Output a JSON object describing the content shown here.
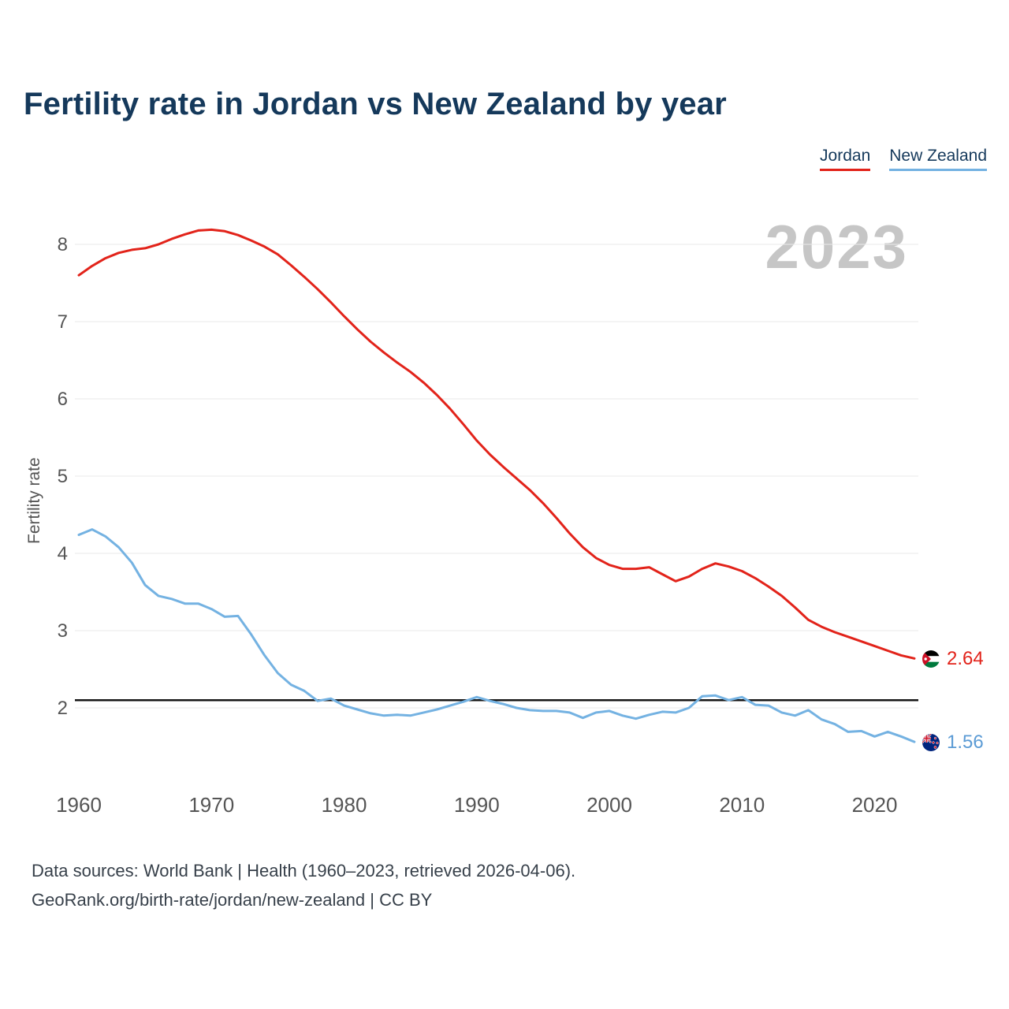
{
  "title": "Fertility rate in Jordan vs New Zealand by year",
  "legend": {
    "jordan": "Jordan",
    "new_zealand": "New Zealand"
  },
  "chart_data": {
    "type": "line",
    "title": "Fertility rate in Jordan vs New Zealand by year",
    "watermark": "2023",
    "xlabel": "",
    "ylabel": "Fertility rate",
    "grid": true,
    "legend_position": "top-right",
    "xlim": [
      1960,
      2023
    ],
    "ylim": [
      1.4,
      8.45
    ],
    "xticks": [
      1960,
      1970,
      1980,
      1990,
      2000,
      2010,
      2020
    ],
    "yticks": [
      2,
      3,
      4,
      5,
      6,
      7,
      8
    ],
    "replacement_line": 2.1,
    "x": [
      1960,
      1961,
      1962,
      1963,
      1964,
      1965,
      1966,
      1967,
      1968,
      1969,
      1970,
      1971,
      1972,
      1973,
      1974,
      1975,
      1976,
      1977,
      1978,
      1979,
      1980,
      1981,
      1982,
      1983,
      1984,
      1985,
      1986,
      1987,
      1988,
      1989,
      1990,
      1991,
      1992,
      1993,
      1994,
      1995,
      1996,
      1997,
      1998,
      1999,
      2000,
      2001,
      2002,
      2003,
      2004,
      2005,
      2006,
      2007,
      2008,
      2009,
      2010,
      2011,
      2012,
      2013,
      2014,
      2015,
      2016,
      2017,
      2018,
      2019,
      2020,
      2021,
      2022,
      2023
    ],
    "series": [
      {
        "name": "Jordan",
        "color": "#e2231a",
        "values": [
          7.6,
          7.72,
          7.82,
          7.89,
          7.93,
          7.95,
          8.0,
          8.07,
          8.13,
          8.18,
          8.19,
          8.17,
          8.12,
          8.05,
          7.97,
          7.87,
          7.73,
          7.58,
          7.42,
          7.25,
          7.07,
          6.9,
          6.74,
          6.6,
          6.47,
          6.35,
          6.21,
          6.05,
          5.87,
          5.67,
          5.46,
          5.28,
          5.12,
          4.97,
          4.82,
          4.65,
          4.46,
          4.26,
          4.08,
          3.94,
          3.85,
          3.8,
          3.8,
          3.82,
          3.73,
          3.64,
          3.7,
          3.8,
          3.87,
          3.83,
          3.77,
          3.68,
          3.57,
          3.45,
          3.3,
          3.14,
          3.05,
          2.98,
          2.92,
          2.86,
          2.8,
          2.74,
          2.68,
          2.64
        ]
      },
      {
        "name": "New Zealand",
        "color": "#74b2e2",
        "values": [
          4.24,
          4.31,
          4.22,
          4.08,
          3.88,
          3.59,
          3.45,
          3.41,
          3.35,
          3.35,
          3.28,
          3.18,
          3.19,
          2.95,
          2.68,
          2.45,
          2.3,
          2.22,
          2.09,
          2.12,
          2.03,
          1.98,
          1.93,
          1.9,
          1.91,
          1.9,
          1.94,
          1.98,
          2.03,
          2.08,
          2.14,
          2.09,
          2.05,
          2.0,
          1.97,
          1.96,
          1.96,
          1.94,
          1.87,
          1.94,
          1.96,
          1.9,
          1.86,
          1.91,
          1.95,
          1.94,
          2.0,
          2.15,
          2.16,
          2.1,
          2.14,
          2.04,
          2.03,
          1.94,
          1.9,
          1.97,
          1.85,
          1.79,
          1.69,
          1.7,
          1.63,
          1.69,
          1.63,
          1.56
        ]
      }
    ],
    "end_labels": {
      "jordan": "2.64",
      "new_zealand": "1.56"
    }
  },
  "footer": {
    "line1": "Data sources: World Bank | Health (1960–2023, retrieved 2026-04-06).",
    "line2": "GeoRank.org/birth-rate/jordan/new-zealand | CC BY"
  }
}
